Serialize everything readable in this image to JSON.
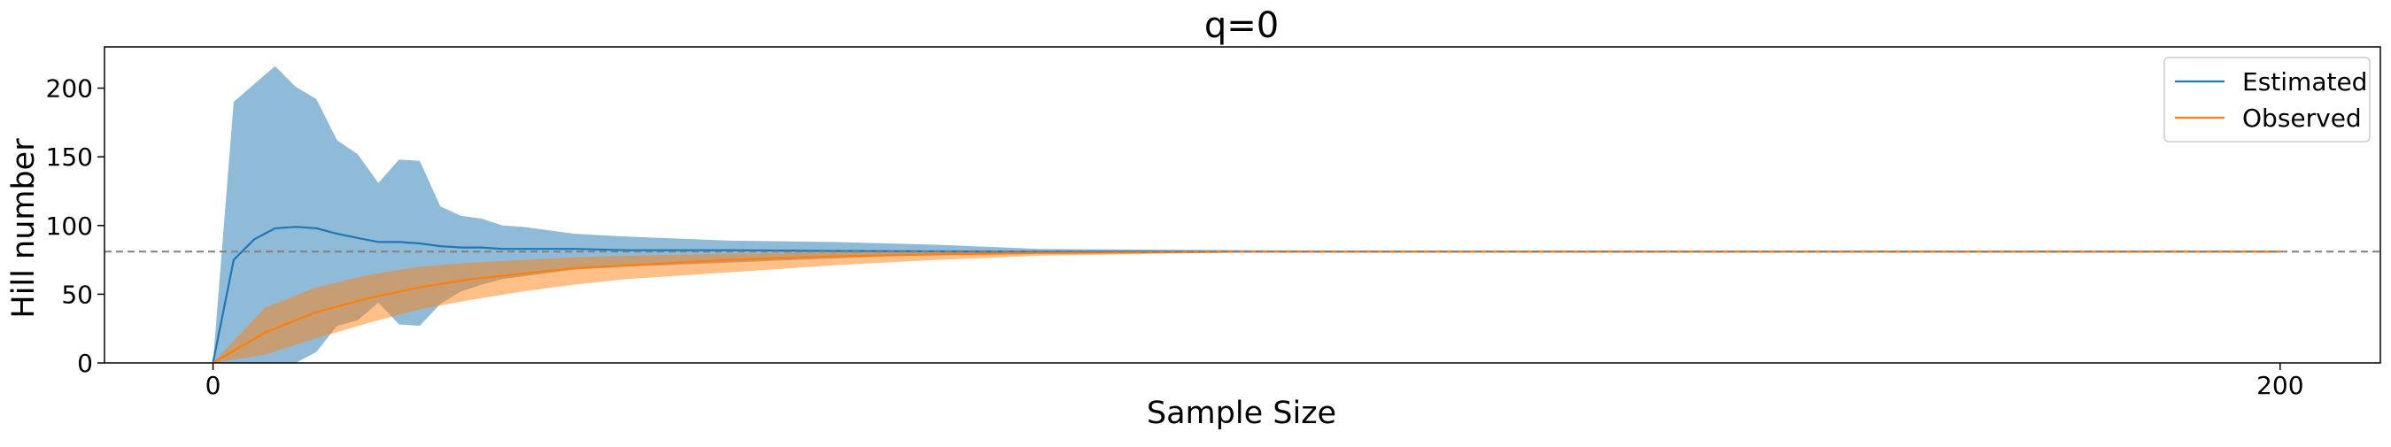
{
  "chart_data": {
    "type": "line",
    "title": "q=0",
    "xlabel": "Sample Size",
    "ylabel": "Hill number",
    "xlim": [
      -10.5,
      209.7
    ],
    "ylim": [
      0,
      230
    ],
    "xticks": [
      0,
      200
    ],
    "yticks": [
      0,
      50,
      100,
      150,
      200
    ],
    "reference_line": {
      "y": 81,
      "style": "dashed",
      "color": "#808080"
    },
    "legend": {
      "position": "top-right",
      "entries": [
        "Estimated",
        "Observed"
      ]
    },
    "series": [
      {
        "name": "Estimated",
        "color": "#1f77b4",
        "x": [
          0,
          2,
          4,
          6,
          8,
          10,
          12,
          14,
          16,
          18,
          20,
          22,
          24,
          26,
          28,
          30,
          35,
          40,
          50,
          60,
          70,
          80,
          100,
          120,
          150,
          180,
          200
        ],
        "y": [
          0,
          75,
          90,
          98,
          99,
          98,
          94,
          91,
          88,
          88,
          87,
          85,
          84,
          84,
          83,
          83,
          83,
          82,
          82,
          81.5,
          81.2,
          81,
          81,
          81,
          81,
          81,
          81
        ],
        "band_upper": [
          0,
          190,
          203,
          216,
          201,
          192,
          162,
          152,
          131,
          148,
          147,
          114,
          107,
          105,
          100,
          99,
          94,
          92,
          89,
          88,
          86,
          83,
          82,
          81.5,
          81.2,
          81,
          81
        ],
        "band_lower": [
          0,
          0,
          0,
          0,
          0,
          8,
          27,
          31,
          44,
          28,
          27,
          43,
          52,
          57,
          61,
          63,
          68,
          70,
          73,
          76,
          79,
          80,
          80.5,
          80.8,
          81,
          81,
          81
        ]
      },
      {
        "name": "Observed",
        "color": "#ff7f0e",
        "x": [
          0,
          5,
          10,
          15,
          20,
          25,
          30,
          35,
          40,
          50,
          60,
          70,
          80,
          100,
          120,
          150,
          180,
          200
        ],
        "y": [
          0,
          22,
          37,
          47,
          55,
          61,
          65,
          69,
          71,
          75,
          77.5,
          79,
          80,
          81,
          81,
          81,
          81,
          81
        ],
        "band_upper": [
          0,
          40,
          55,
          64,
          70,
          73,
          75,
          77,
          78,
          79.5,
          80.5,
          81,
          81,
          81,
          81,
          81,
          81,
          81
        ],
        "band_lower": [
          0,
          6,
          18,
          29,
          39,
          46,
          52,
          57,
          61,
          66,
          71,
          75,
          78,
          80.5,
          81,
          81,
          81,
          81
        ]
      }
    ]
  }
}
